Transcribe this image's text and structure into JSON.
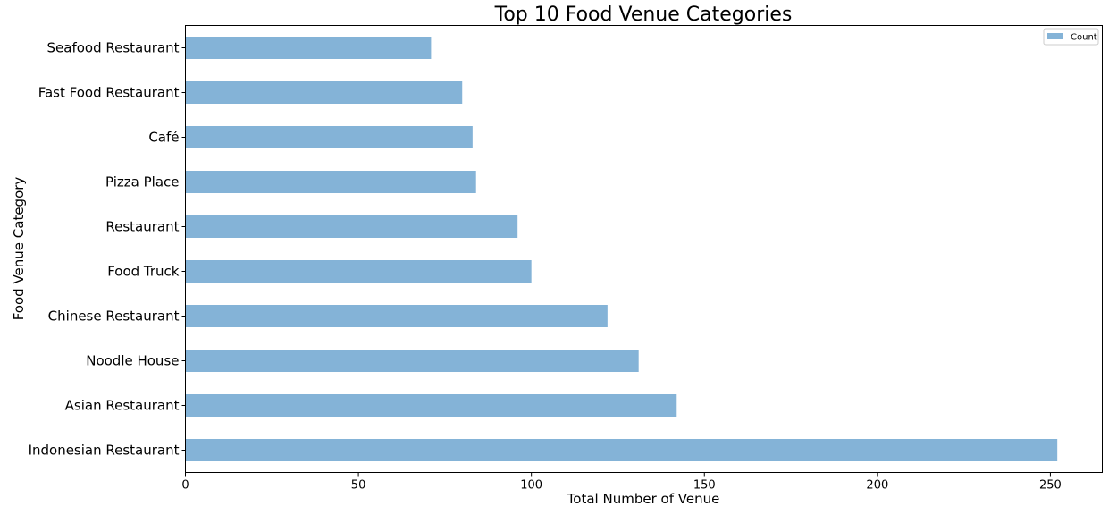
{
  "chart_data": {
    "type": "bar",
    "orientation": "horizontal",
    "title": "Top 10 Food Venue Categories",
    "xlabel": "Total Number of Venue",
    "ylabel": "Food Venue Category",
    "categories": [
      "Indonesian Restaurant",
      "Asian Restaurant",
      "Noodle House",
      "Chinese Restaurant",
      "Food Truck",
      "Restaurant",
      "Pizza Place",
      "Café",
      "Fast Food Restaurant",
      "Seafood Restaurant"
    ],
    "series": [
      {
        "name": "Count",
        "values": [
          252,
          142,
          131,
          122,
          100,
          96,
          84,
          83,
          80,
          71
        ]
      }
    ],
    "xlim": [
      0,
      265
    ],
    "xticks": [
      0,
      50,
      100,
      150,
      200,
      250
    ],
    "grid": false,
    "legend": "top-right",
    "colors": {
      "bar": "#84b3d7",
      "axis": "#000000"
    }
  }
}
